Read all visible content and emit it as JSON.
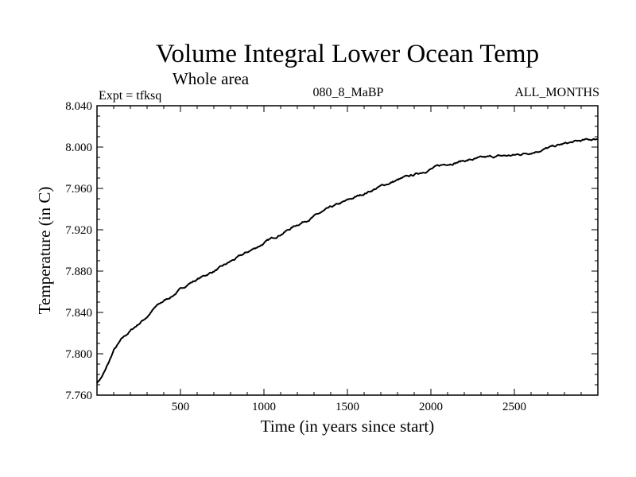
{
  "chart_data": {
    "type": "line",
    "title": "Volume Integral Lower Ocean Temp",
    "subtitle": "Whole area",
    "left_label": "Expt = tfksq",
    "center_label": "080_8_MaBP",
    "right_label": "ALL_MONTHS",
    "xlabel": "Time (in years since start)",
    "ylabel": "Temperature (in C)",
    "xlim": [
      0,
      3000
    ],
    "ylim": [
      7.76,
      8.04
    ],
    "x_ticks": [
      500,
      1000,
      1500,
      2000,
      2500
    ],
    "x_tick_labels": [
      "500",
      "1000",
      "1500",
      "2000",
      "2500"
    ],
    "y_ticks": [
      7.76,
      7.8,
      7.84,
      7.88,
      7.92,
      7.96,
      8.0,
      8.04
    ],
    "y_tick_labels": [
      "7.760",
      "7.800",
      "7.840",
      "7.880",
      "7.920",
      "7.960",
      "8.000",
      "8.040"
    ],
    "grid": false,
    "series": [
      {
        "name": "Temperature",
        "color": "#000000",
        "x": [
          0,
          25,
          50,
          75,
          100,
          150,
          200,
          250,
          300,
          350,
          400,
          450,
          500,
          550,
          600,
          650,
          700,
          750,
          800,
          900,
          1000,
          1100,
          1200,
          1300,
          1400,
          1500,
          1600,
          1700,
          1800,
          1900,
          2000,
          2100,
          2200,
          2300,
          2400,
          2500,
          2600,
          2700,
          2800,
          2900,
          3000
        ],
        "values": [
          7.772,
          7.777,
          7.784,
          7.793,
          7.803,
          7.814,
          7.822,
          7.829,
          7.836,
          7.845,
          7.851,
          7.856,
          7.862,
          7.868,
          7.872,
          7.876,
          7.88,
          7.884,
          7.889,
          7.898,
          7.907,
          7.916,
          7.925,
          7.933,
          7.941,
          7.948,
          7.955,
          7.962,
          7.968,
          7.973,
          7.979,
          7.984,
          7.987,
          7.989,
          7.991,
          7.992,
          7.995,
          7.999,
          8.003,
          8.006,
          8.008
        ]
      }
    ]
  }
}
